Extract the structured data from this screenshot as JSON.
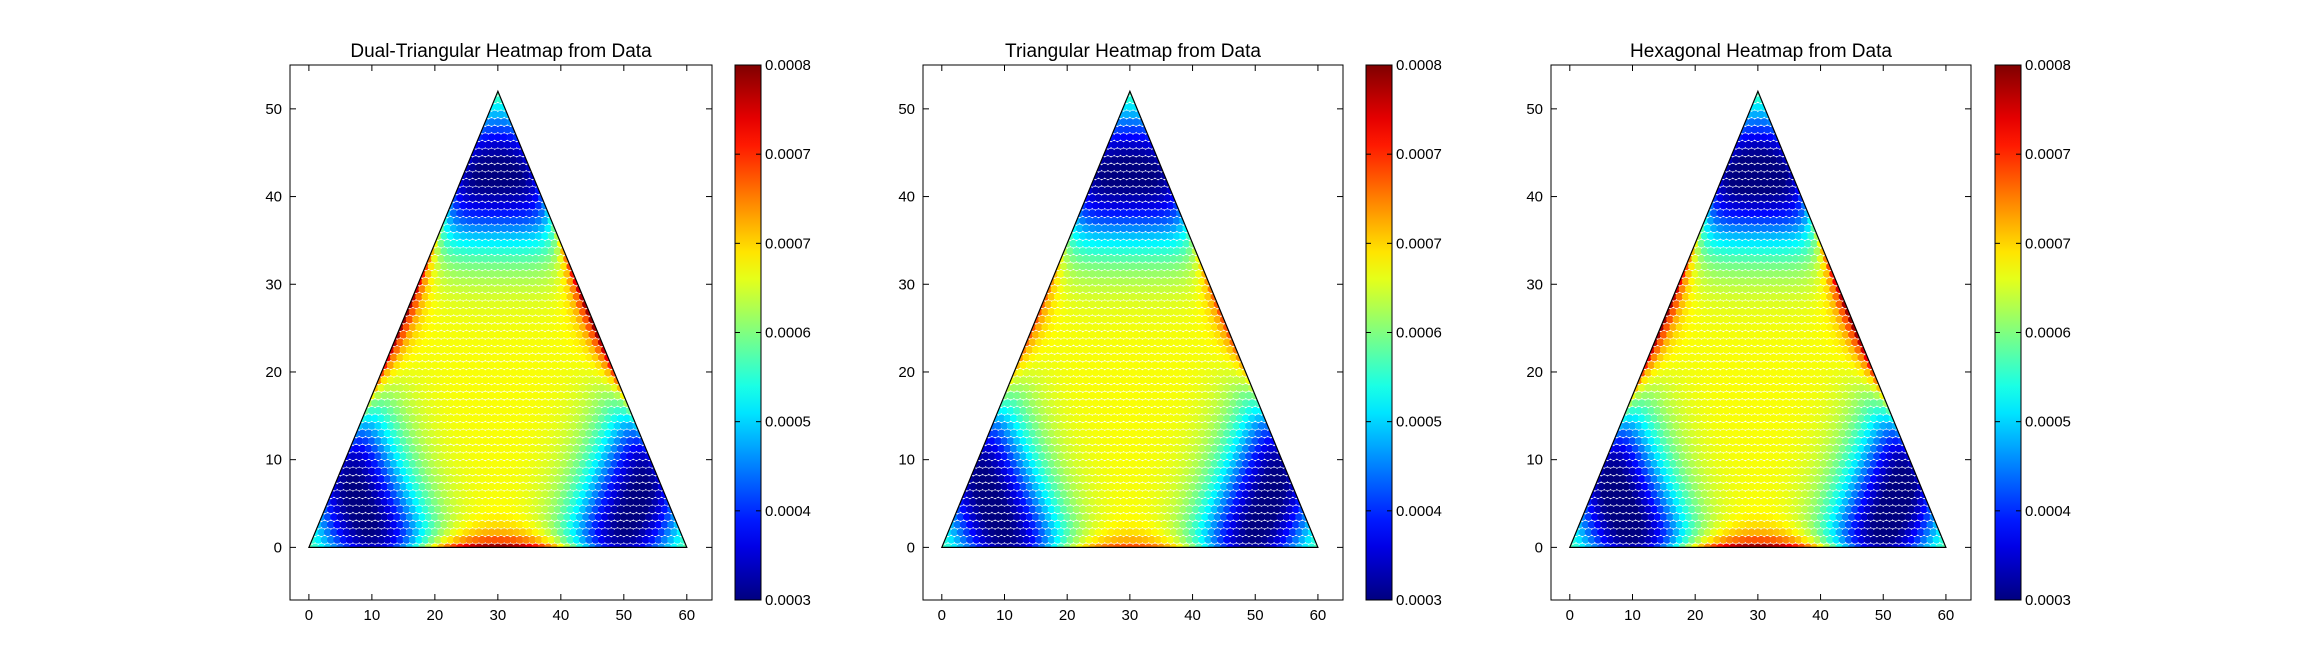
{
  "chart_data": [
    {
      "type": "heatmap",
      "title": "Dual-Triangular Heatmap from Data",
      "xlabel": "",
      "ylabel": "",
      "xlim": [
        -3,
        64
      ],
      "ylim": [
        -6,
        55
      ],
      "xticks": [
        "0",
        "10",
        "20",
        "30",
        "40",
        "50",
        "60"
      ],
      "yticks": [
        "0",
        "10",
        "20",
        "30",
        "40",
        "50"
      ],
      "triangle_vertices": [
        [
          0,
          0
        ],
        [
          60,
          0
        ],
        [
          30,
          52
        ]
      ],
      "colormap": "jet",
      "colorbar": {
        "range": [
          0.0003,
          0.0008
        ],
        "ticks": [
          "0.0003",
          "0.0004",
          "0.0005",
          "0.0006",
          "0.0007",
          "0.0007",
          "0.0008"
        ]
      },
      "value_profile": {
        "corner_low": 0.00031,
        "center": 0.00063,
        "edge_mid_high": 0.0008
      },
      "grid": false
    },
    {
      "type": "heatmap",
      "title": "Triangular Heatmap from Data",
      "xlabel": "",
      "ylabel": "",
      "xlim": [
        -3,
        64
      ],
      "ylim": [
        -6,
        55
      ],
      "xticks": [
        "0",
        "10",
        "20",
        "30",
        "40",
        "50",
        "60"
      ],
      "yticks": [
        "0",
        "10",
        "20",
        "30",
        "40",
        "50"
      ],
      "triangle_vertices": [
        [
          0,
          0
        ],
        [
          60,
          0
        ],
        [
          30,
          52
        ]
      ],
      "colormap": "jet",
      "colorbar": {
        "range": [
          0.0003,
          0.0008
        ],
        "ticks": [
          "0.0003",
          "0.0004",
          "0.0005",
          "0.0006",
          "0.0007",
          "0.0007",
          "0.0008"
        ]
      },
      "value_profile": {
        "corner_low": 0.00031,
        "center": 0.00063,
        "edge_mid_high": 0.00072
      },
      "grid": false
    },
    {
      "type": "heatmap",
      "title": "Hexagonal Heatmap from Data",
      "xlabel": "",
      "ylabel": "",
      "xlim": [
        -3,
        64
      ],
      "ylim": [
        -6,
        55
      ],
      "xticks": [
        "0",
        "10",
        "20",
        "30",
        "40",
        "50",
        "60"
      ],
      "yticks": [
        "0",
        "10",
        "20",
        "30",
        "40",
        "50"
      ],
      "triangle_vertices": [
        [
          0,
          0
        ],
        [
          60,
          0
        ],
        [
          30,
          52
        ]
      ],
      "colormap": "jet",
      "colorbar": {
        "range": [
          0.0003,
          0.0008
        ],
        "ticks": [
          "0.0003",
          "0.0004",
          "0.0005",
          "0.0006",
          "0.0007",
          "0.0007",
          "0.0008"
        ]
      },
      "value_profile": {
        "corner_low": 0.0003,
        "center": 0.00063,
        "edge_mid_high": 0.0008
      },
      "grid": false
    }
  ]
}
